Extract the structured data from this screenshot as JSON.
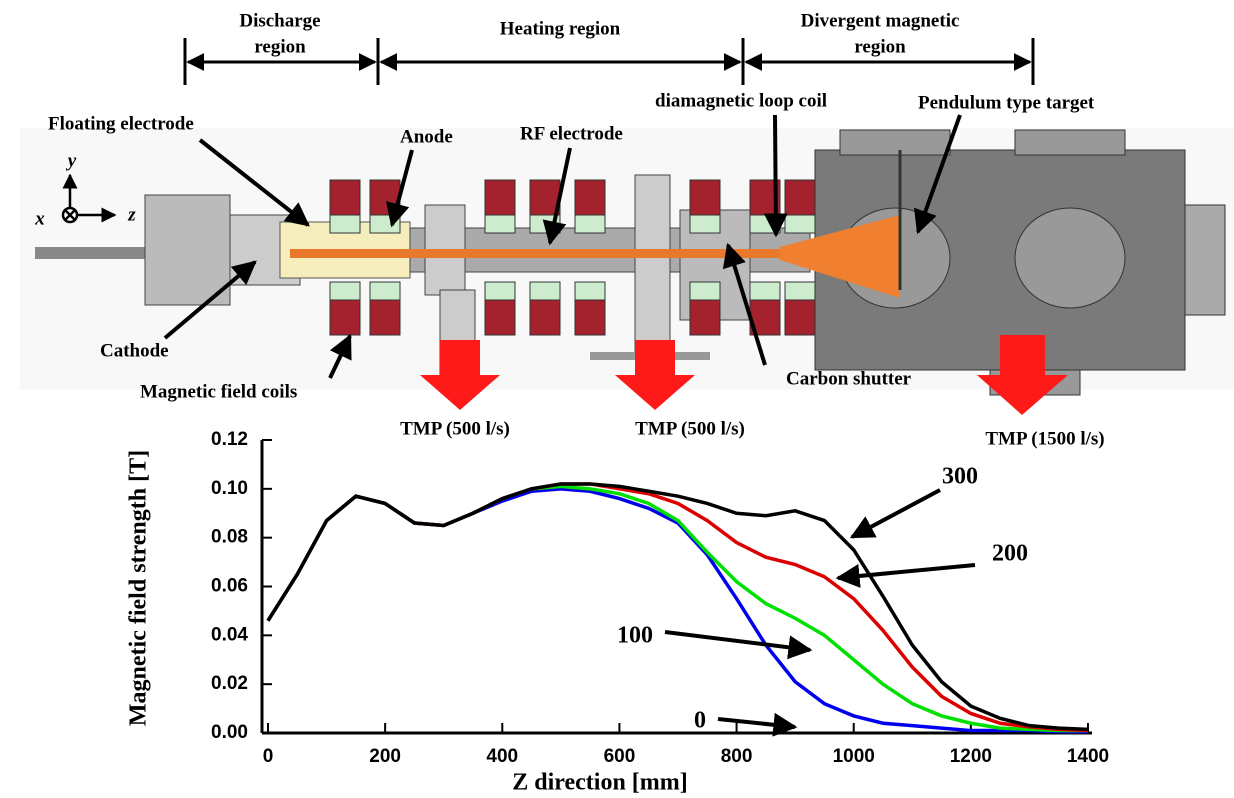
{
  "diagram": {
    "regions": [
      [
        "Discharge",
        "region"
      ],
      [
        "Heating region"
      ],
      [
        "Divergent magnetic",
        "region"
      ]
    ],
    "labels": [
      "Floating electrode",
      "Anode",
      "RF electrode",
      "diamagnetic loop coil",
      "Pendulum  type target",
      "Cathode",
      "Magnetic field coils",
      "Carbon shutter"
    ],
    "pumps": [
      "TMP (500 l/s)",
      "TMP (500 l/s)",
      "TMP (1500 l/s)"
    ],
    "axes": [
      "y",
      "x",
      "z"
    ]
  },
  "chart_data": {
    "type": "line",
    "x_label": "Z direction [mm]",
    "y_label": "Magnetic field strength [T]",
    "xlim": [
      0,
      1400
    ],
    "ylim": [
      0,
      0.12
    ],
    "xticks": [
      0,
      200,
      400,
      600,
      800,
      1000,
      1200,
      1400
    ],
    "yticks": [
      {
        "value": 0,
        "label": "0.00"
      },
      {
        "value": 0.02,
        "label": "0.02"
      },
      {
        "value": 0.04,
        "label": "0.04"
      },
      {
        "value": 0.06,
        "label": "0.06"
      },
      {
        "value": 0.08,
        "label": "0.08"
      },
      {
        "value": 0.1,
        "label": "0.10"
      },
      {
        "value": 0.12,
        "label": "0.12"
      }
    ],
    "x": [
      0,
      50,
      100,
      150,
      200,
      250,
      300,
      350,
      400,
      450,
      500,
      550,
      600,
      650,
      700,
      750,
      800,
      850,
      900,
      950,
      1000,
      1050,
      1100,
      1150,
      1200,
      1250,
      1300,
      1350,
      1400
    ],
    "series": [
      {
        "name": "0",
        "color": "#0000ee",
        "values": [
          0.046,
          0.065,
          0.087,
          0.097,
          0.094,
          0.086,
          0.085,
          0.09,
          0.095,
          0.099,
          0.1,
          0.099,
          0.096,
          0.092,
          0.086,
          0.073,
          0.055,
          0.036,
          0.021,
          0.012,
          0.007,
          0.004,
          0.003,
          0.002,
          0.001,
          0.001,
          0.001,
          0.0005,
          0.0005
        ]
      },
      {
        "name": "100",
        "color": "#00e000",
        "values": [
          0.046,
          0.065,
          0.087,
          0.097,
          0.094,
          0.086,
          0.085,
          0.09,
          0.096,
          0.1,
          0.101,
          0.1,
          0.098,
          0.094,
          0.087,
          0.074,
          0.062,
          0.053,
          0.047,
          0.04,
          0.03,
          0.02,
          0.012,
          0.007,
          0.004,
          0.002,
          0.0015,
          0.001,
          0.001
        ]
      },
      {
        "name": "200",
        "color": "#dd0000",
        "values": [
          0.046,
          0.065,
          0.087,
          0.097,
          0.094,
          0.086,
          0.085,
          0.09,
          0.096,
          0.1,
          0.102,
          0.102,
          0.1,
          0.098,
          0.094,
          0.087,
          0.078,
          0.072,
          0.069,
          0.064,
          0.055,
          0.042,
          0.027,
          0.015,
          0.008,
          0.004,
          0.0025,
          0.0015,
          0.001
        ]
      },
      {
        "name": "300",
        "color": "#000000",
        "values": [
          0.046,
          0.065,
          0.087,
          0.097,
          0.094,
          0.086,
          0.085,
          0.09,
          0.096,
          0.1,
          0.102,
          0.102,
          0.101,
          0.099,
          0.097,
          0.094,
          0.09,
          0.089,
          0.091,
          0.087,
          0.075,
          0.056,
          0.036,
          0.021,
          0.011,
          0.006,
          0.003,
          0.002,
          0.0015
        ]
      }
    ]
  }
}
